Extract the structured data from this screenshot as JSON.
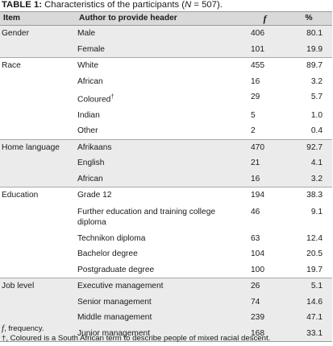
{
  "caption": {
    "label": "TABLE 1:",
    "text_before": " Characteristics of the participants (",
    "n_symbol": "N",
    "text_after": " = 507)."
  },
  "columns": {
    "item": "Item",
    "author": "Author to provide header",
    "f": "f",
    "pct": "%"
  },
  "rows": [
    {
      "item": "Gender",
      "label": "Male",
      "f": "406",
      "pct": "80.1"
    },
    {
      "item": "",
      "label": "Female",
      "f": "101",
      "pct": "19.9"
    },
    {
      "item": "Race",
      "label": "White",
      "f": "455",
      "pct": "89.7"
    },
    {
      "item": "",
      "label": "African",
      "f": "16",
      "pct": "3.2"
    },
    {
      "item": "",
      "label": "Coloured",
      "sup": "†",
      "f": "29",
      "pct": "5.7"
    },
    {
      "item": "",
      "label": "Indian",
      "f": "5",
      "pct": "1.0"
    },
    {
      "item": "",
      "label": "Other",
      "f": "2",
      "pct": "0.4"
    },
    {
      "item": "Home language",
      "label": "Afrikaans",
      "f": "470",
      "pct": "92.7"
    },
    {
      "item": "",
      "label": "English",
      "f": "21",
      "pct": "4.1"
    },
    {
      "item": "",
      "label": "African",
      "f": "16",
      "pct": "3.2"
    },
    {
      "item": "Education",
      "label": "Grade 12",
      "f": "194",
      "pct": "38.3"
    },
    {
      "item": "",
      "label": "Further education and training college diploma",
      "f": "46",
      "pct": "9.1"
    },
    {
      "item": "",
      "label": "Technikon diploma",
      "f": "63",
      "pct": "12.4"
    },
    {
      "item": "",
      "label": "Bachelor degree",
      "f": "104",
      "pct": "20.5"
    },
    {
      "item": "",
      "label": "Postgraduate degree",
      "f": "100",
      "pct": "19.7"
    },
    {
      "item": "Job level",
      "label": "Executive management",
      "f": "26",
      "pct": "5.1"
    },
    {
      "item": "",
      "label": "Senior management",
      "f": "74",
      "pct": "14.6"
    },
    {
      "item": "",
      "label": "Middle management",
      "f": "239",
      "pct": "47.1"
    },
    {
      "item": "",
      "label": "Junior management",
      "f": "168",
      "pct": "33.1"
    }
  ],
  "notes": {
    "f_symbol": "f",
    "f_text": ", frequency.",
    "dagger_text": "†, Coloured is a South African term to describe people of mixed racial descent."
  }
}
